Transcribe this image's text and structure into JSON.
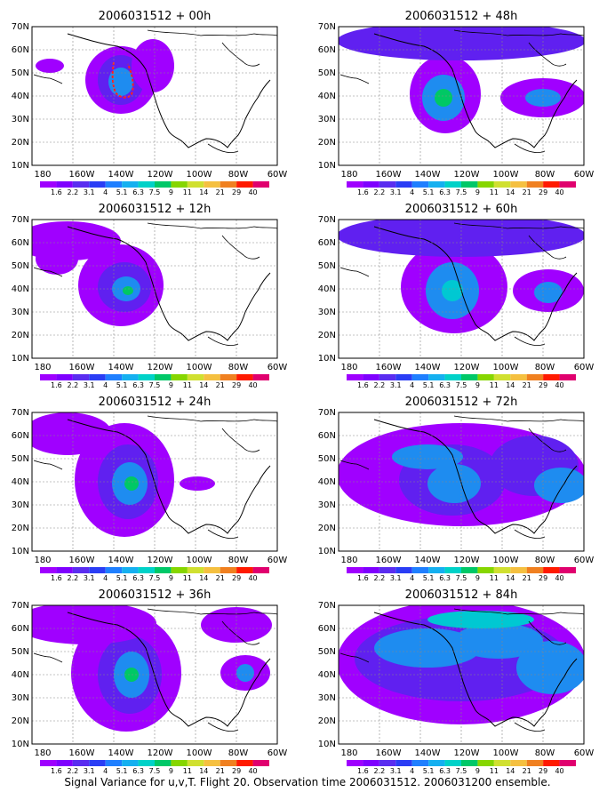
{
  "figure": {
    "caption": "Signal Variance for u,v,T. Flight 20. Observation time 2006031512. 2006031200 ensemble.",
    "panels": [
      {
        "title": "2006031512 + 00h"
      },
      {
        "title": "2006031512 + 12h"
      },
      {
        "title": "2006031512 + 24h"
      },
      {
        "title": "2006031512 + 36h"
      },
      {
        "title": "2006031512 + 48h"
      },
      {
        "title": "2006031512 + 60h"
      },
      {
        "title": "2006031512 + 72h"
      },
      {
        "title": "2006031512 + 84h"
      }
    ],
    "x_ticks": [
      "180",
      "160W",
      "140W",
      "120W",
      "100W",
      "80W",
      "60W"
    ],
    "y_ticks": [
      "10N",
      "20N",
      "30N",
      "40N",
      "50N",
      "60N",
      "70N"
    ],
    "colorbar": {
      "labels": [
        "1.6",
        "2.2",
        "3.1",
        "4",
        "5.1",
        "6.3",
        "7.5",
        "9",
        "11",
        "14",
        "21",
        "29",
        "40"
      ],
      "colors": [
        "#9f00ff",
        "#7f00ff",
        "#5a2df0",
        "#2a3df5",
        "#1f7fff",
        "#15b0f0",
        "#00d2c8",
        "#00c868",
        "#86d600",
        "#d0e030",
        "#f5c040",
        "#f08020",
        "#ff1a00",
        "#e0006e"
      ]
    },
    "map_colors": {
      "low": "#a000ff",
      "lowmid": "#6020f0",
      "mid": "#1e8cf0",
      "midhigh": "#00c8d2",
      "high": "#00c864",
      "flight_track": "#ff2020"
    }
  }
}
